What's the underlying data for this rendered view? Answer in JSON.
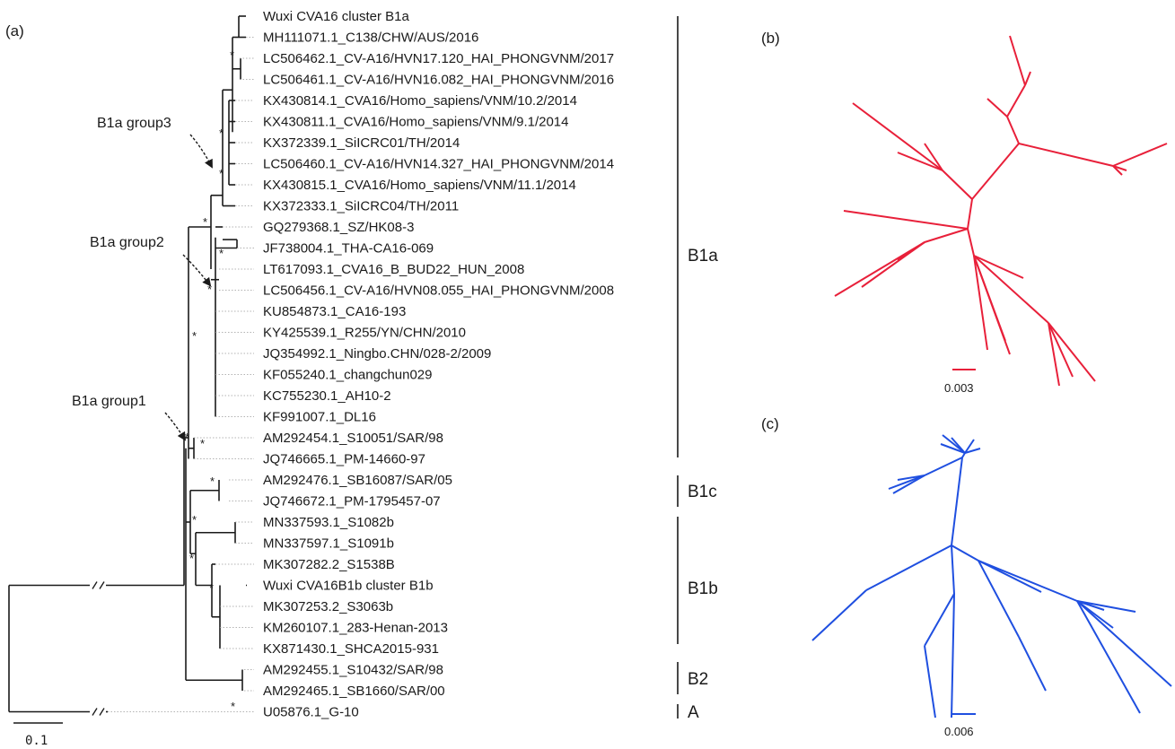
{
  "panels": {
    "a": "(a)",
    "b": "(b)",
    "c": "(c)"
  },
  "leaves": [
    "Wuxi CVA16 cluster B1a",
    "MH111071.1_C138/CHW/AUS/2016",
    "LC506462.1_CV-A16/HVN17.120_HAI_PHONGVNM/2017",
    "LC506461.1_CV-A16/HVN16.082_HAI_PHONGVNM/2016",
    "KX430814.1_CVA16/Homo_sapiens/VNM/10.2/2014",
    "KX430811.1_CVA16/Homo_sapiens/VNM/9.1/2014",
    "KX372339.1_SiICRC01/TH/2014",
    "LC506460.1_CV-A16/HVN14.327_HAI_PHONGVNM/2014",
    "KX430815.1_CVA16/Homo_sapiens/VNM/11.1/2014",
    "KX372333.1_SiICRC04/TH/2011",
    "GQ279368.1_SZ/HK08-3",
    "JF738004.1_THA-CA16-069",
    "LT617093.1_CVA16_B_BUD22_HUN_2008",
    "LC506456.1_CV-A16/HVN08.055_HAI_PHONGVNM/2008",
    "KU854873.1_CA16-193",
    "KY425539.1_R255/YN/CHN/2010",
    "JQ354992.1_Ningbo.CHN/028-2/2009",
    "KF055240.1_changchun029",
    "KC755230.1_AH10-2",
    "KF991007.1_DL16",
    "AM292454.1_S10051/SAR/98",
    "JQ746665.1_PM-14660-97",
    "AM292476.1_SB16087/SAR/05",
    "JQ746672.1_PM-1795457-07",
    "MN337593.1_S1082b",
    "MN337597.1_S1091b",
    "MK307282.2_S1538B",
    "Wuxi CVA16B1b cluster B1b",
    "MK307253.2_S3063b",
    "KM260107.1_283-Henan-2013",
    "KX871430.1_SHCA2015-931",
    "AM292455.1_S10432/SAR/98",
    "AM292465.1_SB1660/SAR/00",
    "U05876.1_G-10"
  ],
  "clades": [
    "B1a",
    "B1c",
    "B1b",
    "B2",
    "A"
  ],
  "groups": [
    "B1a group3",
    "B1a group2",
    "B1a group1"
  ],
  "support_mark": "*",
  "scales": {
    "a": "0.1",
    "b": "0.003",
    "c": "0.006"
  },
  "colors": {
    "b1a": "#e8203a",
    "b1b": "#1f4fe0",
    "ink": "#1a1a1a"
  }
}
